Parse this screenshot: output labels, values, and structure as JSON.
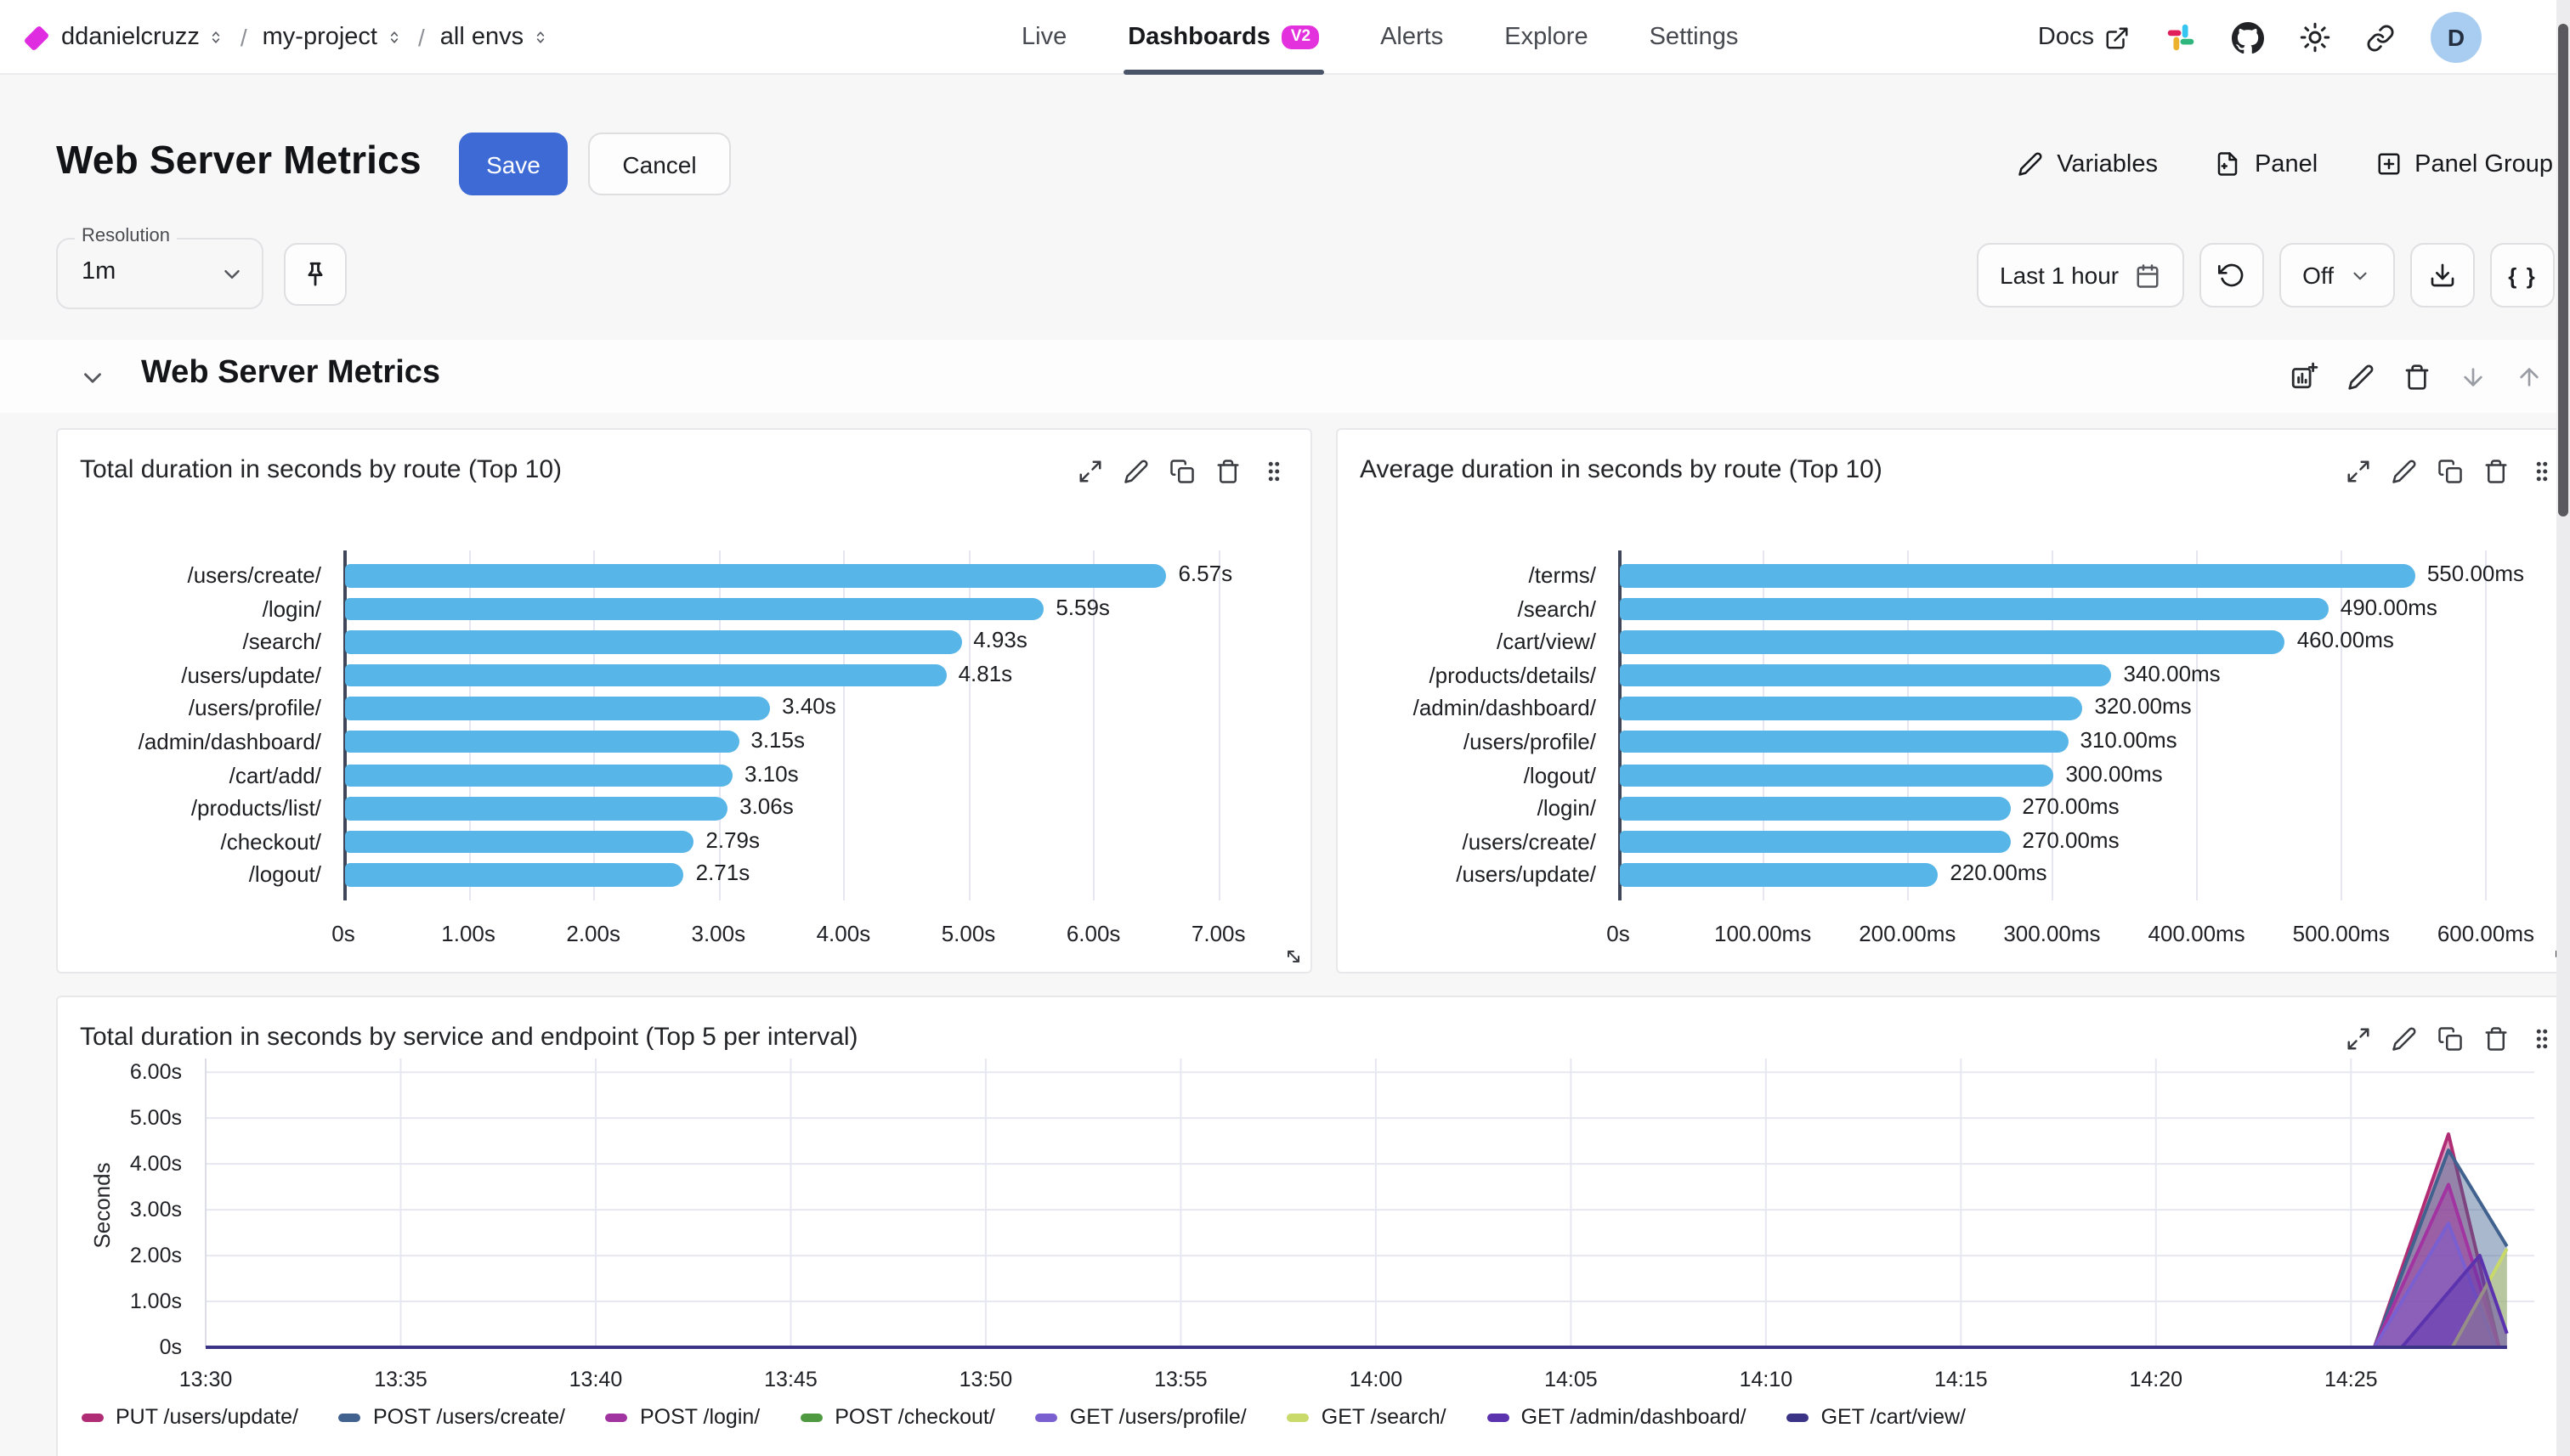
{
  "nav": {
    "separator": "/",
    "breadcrumb": [
      {
        "label": "ddanielcruzz"
      },
      {
        "label": "my-project"
      },
      {
        "label": "all envs"
      }
    ],
    "tabs": [
      {
        "label": "Live",
        "active": false
      },
      {
        "label": "Dashboards",
        "badge": "V2",
        "active": true
      },
      {
        "label": "Alerts",
        "active": false
      },
      {
        "label": "Explore",
        "active": false
      },
      {
        "label": "Settings",
        "active": false
      }
    ],
    "docs_label": "Docs",
    "avatar_initial": "D"
  },
  "header": {
    "title": "Web Server Metrics",
    "save_label": "Save",
    "cancel_label": "Cancel",
    "actions": [
      {
        "label": "Variables",
        "icon": "pencil-icon"
      },
      {
        "label": "Panel",
        "icon": "file-plus-icon"
      },
      {
        "label": "Panel Group",
        "icon": "plus-square-icon"
      }
    ]
  },
  "toolbar": {
    "resolution_label": "Resolution",
    "resolution_value": "1m",
    "time_range_label": "Last 1 hour",
    "refresh_off_label": "Off",
    "braces_label": "{ }"
  },
  "section": {
    "title": "Web Server Metrics"
  },
  "colors": {
    "accent_blue": "#3e6ad6",
    "brand_magenta": "#e02ce0",
    "tab_underline": "#4a5468",
    "bar_blue": "#57b5e7"
  },
  "chart_data": [
    {
      "type": "bar",
      "orientation": "horizontal",
      "title": "Total duration in seconds by route (Top 10)",
      "categories": [
        "/users/create/",
        "/login/",
        "/search/",
        "/users/update/",
        "/users/profile/",
        "/admin/dashboard/",
        "/cart/add/",
        "/products/list/",
        "/checkout/",
        "/logout/"
      ],
      "values": [
        6.57,
        5.59,
        4.93,
        4.81,
        3.4,
        3.15,
        3.1,
        3.06,
        2.79,
        2.71
      ],
      "value_labels": [
        "6.57s",
        "5.59s",
        "4.93s",
        "4.81s",
        "3.40s",
        "3.15s",
        "3.10s",
        "3.06s",
        "2.79s",
        "2.71s"
      ],
      "x_ticks": [
        {
          "value": 0,
          "label": "0s"
        },
        {
          "value": 1,
          "label": "1.00s"
        },
        {
          "value": 2,
          "label": "2.00s"
        },
        {
          "value": 3,
          "label": "3.00s"
        },
        {
          "value": 4,
          "label": "4.00s"
        },
        {
          "value": 5,
          "label": "5.00s"
        },
        {
          "value": 6,
          "label": "6.00s"
        },
        {
          "value": 7,
          "label": "7.00s"
        }
      ],
      "xlim": [
        0,
        7.6
      ],
      "bar_color": "#57b5e7"
    },
    {
      "type": "bar",
      "orientation": "horizontal",
      "title": "Average duration in seconds by route (Top 10)",
      "categories": [
        "/terms/",
        "/search/",
        "/cart/view/",
        "/products/details/",
        "/admin/dashboard/",
        "/users/profile/",
        "/logout/",
        "/login/",
        "/users/create/",
        "/users/update/"
      ],
      "values": [
        550,
        490,
        460,
        340,
        320,
        310,
        300,
        270,
        270,
        220
      ],
      "value_labels": [
        "550.00ms",
        "490.00ms",
        "460.00ms",
        "340.00ms",
        "320.00ms",
        "310.00ms",
        "300.00ms",
        "270.00ms",
        "270.00ms",
        "220.00ms"
      ],
      "x_ticks": [
        {
          "value": 0,
          "label": "0s"
        },
        {
          "value": 100,
          "label": "100.00ms"
        },
        {
          "value": 200,
          "label": "200.00ms"
        },
        {
          "value": 300,
          "label": "300.00ms"
        },
        {
          "value": 400,
          "label": "400.00ms"
        },
        {
          "value": 500,
          "label": "500.00ms"
        },
        {
          "value": 600,
          "label": "600.00ms"
        }
      ],
      "xlim": [
        0,
        650
      ],
      "bar_color": "#57b5e7"
    },
    {
      "type": "area",
      "title": "Total duration in seconds by service and endpoint (Top 5 per interval)",
      "ylabel": "Seconds",
      "ylim": [
        0,
        6.3
      ],
      "y_ticks": [
        {
          "value": 0,
          "label": "0s"
        },
        {
          "value": 1,
          "label": "1.00s"
        },
        {
          "value": 2,
          "label": "2.00s"
        },
        {
          "value": 3,
          "label": "3.00s"
        },
        {
          "value": 4,
          "label": "4.00s"
        },
        {
          "value": 5,
          "label": "5.00s"
        },
        {
          "value": 6,
          "label": "6.00s"
        }
      ],
      "x_ticks": [
        {
          "minute": 0,
          "label": "13:30"
        },
        {
          "minute": 5,
          "label": "13:35"
        },
        {
          "minute": 10,
          "label": "13:40"
        },
        {
          "minute": 15,
          "label": "13:45"
        },
        {
          "minute": 20,
          "label": "13:50"
        },
        {
          "minute": 25,
          "label": "13:55"
        },
        {
          "minute": 30,
          "label": "14:00"
        },
        {
          "minute": 35,
          "label": "14:05"
        },
        {
          "minute": 40,
          "label": "14:10"
        },
        {
          "minute": 45,
          "label": "14:15"
        },
        {
          "minute": 50,
          "label": "14:20"
        },
        {
          "minute": 55,
          "label": "14:25"
        }
      ],
      "x_domain_minutes": [
        0,
        59.7
      ],
      "series": [
        {
          "name": "PUT /users/update/",
          "color": "#b02d75",
          "points": [
            [
              0,
              0
            ],
            [
              55.6,
              0
            ],
            [
              57.5,
              4.65
            ],
            [
              58.8,
              0
            ],
            [
              59,
              0
            ]
          ]
        },
        {
          "name": "POST /users/create/",
          "color": "#41628e",
          "points": [
            [
              0,
              0
            ],
            [
              55.6,
              0
            ],
            [
              57.5,
              4.3
            ],
            [
              59,
              2.2
            ]
          ]
        },
        {
          "name": "POST /login/",
          "color": "#a134a1",
          "points": [
            [
              0,
              0
            ],
            [
              55.6,
              0
            ],
            [
              57.5,
              3.55
            ],
            [
              58.8,
              0
            ],
            [
              59,
              0
            ]
          ]
        },
        {
          "name": "POST /checkout/",
          "color": "#4f9a41",
          "points": [
            [
              0,
              0
            ],
            [
              59,
              0
            ]
          ]
        },
        {
          "name": "GET /users/profile/",
          "color": "#7a5fd0",
          "points": [
            [
              0,
              0
            ],
            [
              55.6,
              0
            ],
            [
              57.5,
              2.7
            ],
            [
              58.7,
              0
            ],
            [
              59,
              0
            ]
          ]
        },
        {
          "name": "GET /search/",
          "color": "#c9d96a",
          "points": [
            [
              0,
              0
            ],
            [
              57.6,
              0
            ],
            [
              59,
              2.15
            ]
          ]
        },
        {
          "name": "GET /admin/dashboard/",
          "color": "#5c33ae",
          "points": [
            [
              0,
              0
            ],
            [
              56.3,
              0
            ],
            [
              58.3,
              2.0
            ],
            [
              59,
              0.3
            ]
          ]
        },
        {
          "name": "GET /cart/view/",
          "color": "#3a3386",
          "points": [
            [
              0,
              0
            ],
            [
              59,
              0
            ]
          ]
        }
      ]
    }
  ]
}
